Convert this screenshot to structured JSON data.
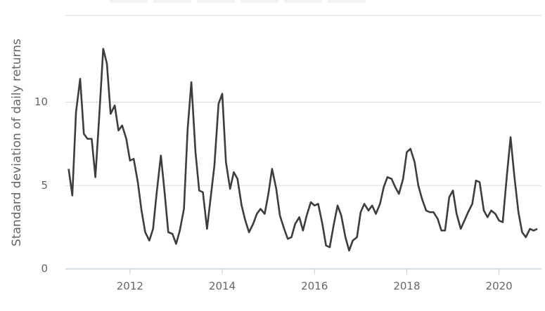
{
  "chart_data": {
    "type": "line",
    "y_label": "Standard deviation of daily returns",
    "x": [
      2010.67,
      2010.75,
      2010.83,
      2010.92,
      2011,
      2011.08,
      2011.17,
      2011.25,
      2011.33,
      2011.42,
      2011.5,
      2011.58,
      2011.67,
      2011.75,
      2011.83,
      2011.92,
      2012,
      2012.08,
      2012.17,
      2012.25,
      2012.33,
      2012.42,
      2012.5,
      2012.58,
      2012.67,
      2012.75,
      2012.83,
      2012.92,
      2013,
      2013.08,
      2013.17,
      2013.25,
      2013.33,
      2013.42,
      2013.5,
      2013.58,
      2013.67,
      2013.75,
      2013.83,
      2013.92,
      2014,
      2014.08,
      2014.17,
      2014.25,
      2014.33,
      2014.42,
      2014.5,
      2014.58,
      2014.67,
      2014.75,
      2014.83,
      2014.92,
      2015,
      2015.08,
      2015.17,
      2015.25,
      2015.33,
      2015.42,
      2015.5,
      2015.58,
      2015.67,
      2015.75,
      2015.83,
      2015.92,
      2016,
      2016.08,
      2016.17,
      2016.25,
      2016.33,
      2016.42,
      2016.5,
      2016.58,
      2016.67,
      2016.75,
      2016.83,
      2016.92,
      2017,
      2017.08,
      2017.17,
      2017.25,
      2017.33,
      2017.42,
      2017.5,
      2017.58,
      2017.67,
      2017.75,
      2017.83,
      2017.92,
      2018,
      2018.08,
      2018.17,
      2018.25,
      2018.33,
      2018.42,
      2018.5,
      2018.58,
      2018.67,
      2018.75,
      2018.83,
      2018.92,
      2019,
      2019.08,
      2019.17,
      2019.25,
      2019.33,
      2019.42,
      2019.5,
      2019.58,
      2019.67,
      2019.75,
      2019.83,
      2019.92,
      2020,
      2020.08,
      2020.17,
      2020.25,
      2020.33,
      2020.42,
      2020.5,
      2020.58,
      2020.67,
      2020.75,
      2020.83
    ],
    "series": [
      {
        "color": "#3d3d40",
        "values": [
          6.0,
          4.4,
          9.4,
          11.4,
          8.1,
          7.8,
          7.8,
          5.5,
          9.0,
          13.2,
          12.3,
          9.3,
          9.8,
          8.3,
          8.6,
          7.8,
          6.5,
          6.6,
          5.2,
          3.5,
          2.2,
          1.7,
          2.4,
          4.6,
          6.8,
          4.6,
          2.2,
          2.1,
          1.5,
          2.3,
          3.6,
          8.4,
          11.2,
          7.0,
          4.7,
          4.6,
          2.4,
          4.3,
          6.2,
          9.9,
          10.5,
          6.4,
          4.8,
          5.8,
          5.4,
          3.8,
          2.9,
          2.2,
          2.7,
          3.3,
          3.6,
          3.3,
          4.5,
          6.0,
          4.8,
          3.2,
          2.5,
          1.8,
          1.9,
          2.7,
          3.1,
          2.3,
          3.2,
          4.0,
          3.8,
          3.9,
          2.7,
          1.4,
          1.3,
          2.7,
          3.8,
          3.2,
          1.9,
          1.1,
          1.7,
          1.9,
          3.4,
          3.9,
          3.5,
          3.8,
          3.3,
          3.9,
          4.9,
          5.5,
          5.4,
          4.9,
          4.5,
          5.4,
          7.0,
          7.2,
          6.4,
          5.0,
          4.2,
          3.5,
          3.4,
          3.4,
          3.0,
          2.3,
          2.3,
          4.3,
          4.7,
          3.3,
          2.4,
          2.9,
          3.4,
          3.9,
          5.3,
          5.2,
          3.5,
          3.1,
          3.5,
          3.3,
          2.9,
          2.8,
          5.6,
          7.9,
          5.6,
          3.4,
          2.2,
          1.9,
          2.4,
          2.3,
          2.4
        ]
      }
    ],
    "xlim": [
      2010.6,
      2020.92
    ],
    "xticks": [
      2012,
      2014,
      2016,
      2018,
      2020
    ],
    "ylim": [
      0,
      15.2
    ],
    "yticks": [
      0,
      5,
      10
    ],
    "grid": true
  }
}
